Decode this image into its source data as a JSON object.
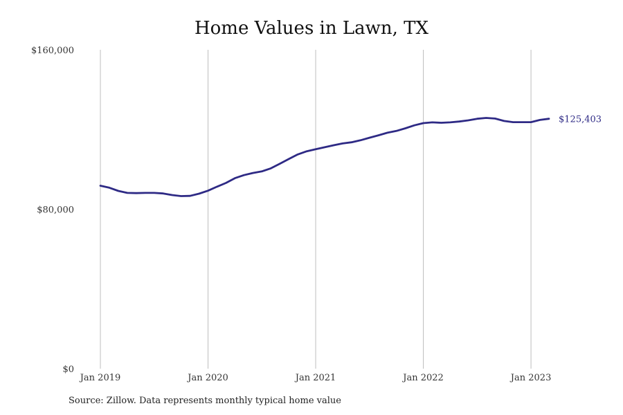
{
  "chart_data": {
    "type": "line",
    "title": "Home Values in Lawn, TX",
    "source": "Source: Zillow. Data represents monthly typical home value",
    "ylim": [
      0,
      160000
    ],
    "y_ticks": [
      {
        "value": 0,
        "label": "$0"
      },
      {
        "value": 80000,
        "label": "$80,000"
      },
      {
        "value": 160000,
        "label": "$160,000"
      }
    ],
    "x_ticks": [
      {
        "value": 0,
        "label": "Jan 2019"
      },
      {
        "value": 12,
        "label": "Jan 2020"
      },
      {
        "value": 24,
        "label": "Jan 2021"
      },
      {
        "value": 36,
        "label": "Jan 2022"
      },
      {
        "value": 48,
        "label": "Jan 2023"
      }
    ],
    "grid": "vertical",
    "line_color": "#2e2a85",
    "end_label": "$125,403",
    "series": [
      {
        "values": [
          91800,
          90800,
          89200,
          88200,
          88100,
          88200,
          88200,
          87900,
          87100,
          86600,
          86700,
          87800,
          89300,
          91300,
          93200,
          95600,
          97100,
          98200,
          99000,
          100500,
          102800,
          105200,
          107500,
          109100,
          110100,
          111100,
          112100,
          113000,
          113600,
          114600,
          115900,
          117100,
          118400,
          119300,
          120600,
          122100,
          123200,
          123600,
          123400,
          123600,
          124000,
          124600,
          125400,
          125800,
          125500,
          124300,
          123700,
          123700,
          123700,
          124800,
          125403
        ]
      }
    ]
  }
}
